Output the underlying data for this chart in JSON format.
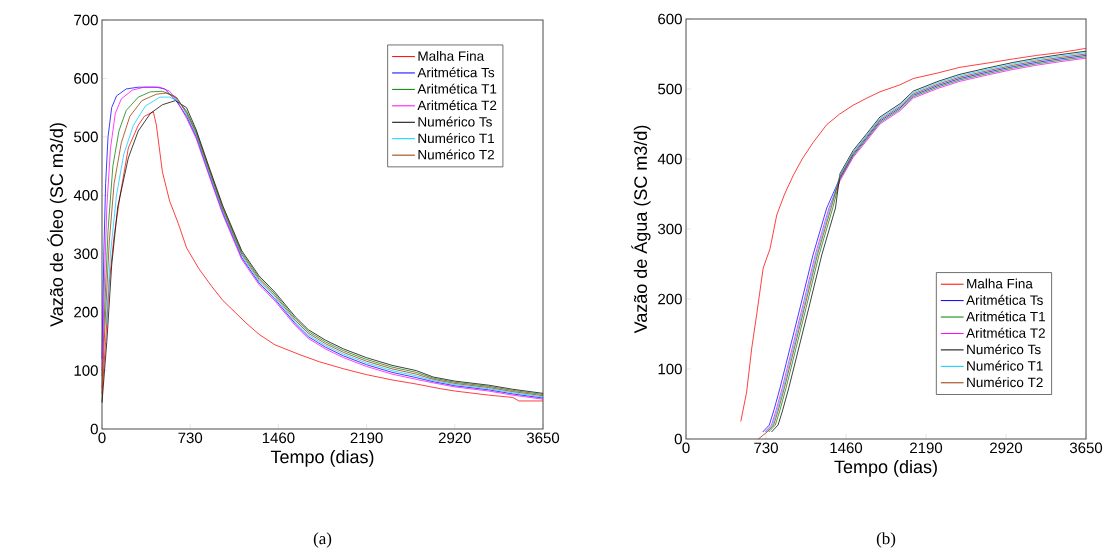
{
  "chart_data": [
    {
      "type": "line",
      "xlabel": "Tempo (dias)",
      "ylabel": "Vazão de Óleo (SC m3/d)",
      "xlim": [
        0,
        3650
      ],
      "ylim": [
        0,
        700
      ],
      "xticks": [
        0,
        730,
        1460,
        2190,
        2920,
        3650
      ],
      "yticks": [
        0,
        100,
        200,
        300,
        400,
        500,
        600,
        700
      ],
      "grid": false,
      "legend": "top right",
      "marker": "none",
      "annotations": [
        "(a)"
      ],
      "series": [
        {
          "name": "Malha Fina",
          "color": "#ff0000",
          "x": [
            0,
            30,
            60,
            100,
            150,
            218,
            300,
            350,
            425,
            450,
            500,
            560,
            631,
            700,
            800,
            908,
            1000,
            1100,
            1200,
            1300,
            1432,
            1639,
            1800,
            2000,
            2190,
            2400,
            2600,
            2800,
            2920,
            3200,
            3400,
            3450,
            3650
          ],
          "values": [
            60,
            150,
            250,
            330,
            400,
            481,
            520,
            535,
            543,
            520,
            440,
            390,
            352,
            310,
            275,
            244,
            220,
            200,
            180,
            162,
            144,
            127,
            115,
            103,
            93,
            84,
            77,
            69,
            65,
            58,
            54,
            48,
            48
          ]
        },
        {
          "name": "Aritmética Ts",
          "color": "#0000ff",
          "x": [
            0,
            15,
            30,
            50,
            80,
            120,
            200,
            300,
            450,
            520,
            620,
            700,
            780,
            880,
            1000,
            1157,
            1300,
            1432,
            1600,
            1707,
            1850,
            2000,
            2190,
            2400,
            2600,
            2741,
            2920,
            3200,
            3400,
            3650
          ],
          "values": [
            120,
            300,
            420,
            500,
            550,
            570,
            582,
            585,
            585,
            582,
            560,
            535,
            500,
            440,
            370,
            293,
            250,
            222,
            180,
            158,
            140,
            125,
            110,
            97,
            88,
            81,
            74,
            67,
            60,
            53
          ]
        },
        {
          "name": "Aritmética T1",
          "color": "#008000",
          "x": [
            0,
            25,
            50,
            90,
            140,
            200,
            300,
            400,
            500,
            600,
            700,
            780,
            880,
            1000,
            1157,
            1300,
            1432,
            1600,
            1707,
            1850,
            2000,
            2190,
            2400,
            2600,
            2741,
            2920,
            3200,
            3400,
            3650
          ],
          "values": [
            90,
            220,
            340,
            450,
            510,
            545,
            568,
            577,
            578,
            570,
            544,
            509,
            449,
            379,
            302,
            259,
            231,
            189,
            167,
            149,
            134,
            119,
            106,
            97,
            87,
            80,
            73,
            66,
            59
          ]
        },
        {
          "name": "Aritmética T2",
          "color": "#ff00ff",
          "x": [
            0,
            20,
            40,
            70,
            110,
            160,
            250,
            350,
            480,
            560,
            620,
            700,
            780,
            880,
            1000,
            1157,
            1300,
            1432,
            1600,
            1707,
            1850,
            2000,
            2190,
            2400,
            2600,
            2741,
            2920,
            3200,
            3400,
            3650
          ],
          "values": [
            100,
            250,
            380,
            480,
            540,
            565,
            580,
            585,
            585,
            578,
            562,
            532,
            497,
            437,
            367,
            290,
            247,
            219,
            177,
            155,
            137,
            122,
            107,
            94,
            85,
            79,
            72,
            65,
            58,
            51
          ]
        },
        {
          "name": "Numérico Ts",
          "color": "#000000",
          "x": [
            0,
            40,
            80,
            130,
            218,
            300,
            400,
            500,
            607,
            700,
            780,
            880,
            1000,
            1157,
            1300,
            1432,
            1600,
            1707,
            1850,
            2000,
            2190,
            2400,
            2600,
            2741,
            2920,
            3200,
            3400,
            3650
          ],
          "values": [
            45,
            150,
            280,
            380,
            464,
            510,
            540,
            555,
            562,
            550,
            512,
            452,
            382,
            305,
            262,
            234,
            192,
            170,
            152,
            137,
            122,
            109,
            100,
            89,
            82,
            75,
            68,
            61
          ]
        },
        {
          "name": "Numérico T1",
          "color": "#00ccff",
          "x": [
            35,
            70,
            120,
            180,
            260,
            360,
            480,
            560,
            640,
            700,
            780,
            880,
            1000,
            1157,
            1300,
            1432,
            1600,
            1707,
            1850,
            2000,
            2190,
            2400,
            2600,
            2741,
            2920,
            3200,
            3400,
            3650
          ],
          "values": [
            180,
            300,
            400,
            470,
            520,
            553,
            568,
            568,
            560,
            538,
            503,
            443,
            373,
            296,
            253,
            225,
            183,
            161,
            143,
            128,
            113,
            100,
            91,
            83,
            76,
            69,
            62,
            55
          ]
        },
        {
          "name": "Numérico T2",
          "color": "#993300",
          "x": [
            0,
            30,
            60,
            100,
            160,
            230,
            330,
            450,
            530,
            620,
            700,
            780,
            880,
            1000,
            1157,
            1300,
            1432,
            1600,
            1707,
            1850,
            2000,
            2190,
            2400,
            2600,
            2741,
            2920,
            3200,
            3400,
            3650
          ],
          "values": [
            70,
            200,
            320,
            420,
            490,
            535,
            562,
            573,
            575,
            567,
            541,
            506,
            null,
            376,
            299,
            256,
            228,
            186,
            164,
            146,
            131,
            116,
            103,
            94,
            85,
            78,
            71,
            64,
            57
          ]
        }
      ]
    },
    {
      "type": "line",
      "xlabel": "Tempo (dias)",
      "ylabel": "Vazão de Água (SC m3/d)",
      "xlim": [
        0,
        3650
      ],
      "ylim": [
        0,
        600
      ],
      "xticks": [
        0,
        730,
        1460,
        2190,
        2920,
        3650
      ],
      "yticks": [
        0,
        100,
        200,
        300,
        400,
        500,
        600
      ],
      "grid": false,
      "legend": "bottom right",
      "marker": "none",
      "annotations": [
        "(b)"
      ],
      "series": [
        {
          "name": "Malha Fina",
          "color": "#ff0000",
          "x": [
            500,
            553,
            600,
            644,
            704,
            767,
            828,
            900,
            980,
            1060,
            1162,
            1284,
            1400,
            1527,
            1650,
            1770,
            1953,
            2074,
            2300,
            2500,
            2750,
            2987,
            3200,
            3412,
            3650
          ],
          "values": [
            25,
            67,
            130,
            177,
            244,
            272,
            320,
            350,
            377,
            400,
            424,
            449,
            464,
            477,
            487,
            496,
            506,
            515,
            523,
            531,
            537,
            543,
            548,
            552,
            558
          ]
        },
        {
          "name": "Aritmética Ts",
          "color": "#0000ff",
          "x": [
            700,
            760,
            800,
            858,
            949,
            1040,
            1159,
            1284,
            1405,
            1524,
            1648,
            1770,
            1953,
            2074,
            2300,
            2500,
            2750,
            2987,
            3200,
            3412,
            3650
          ],
          "values": [
            10,
            20,
            40,
            73,
            130,
            187,
            263,
            330,
            373,
            406,
            430,
            454,
            473,
            491,
            505,
            515,
            524,
            532,
            538,
            543,
            548
          ]
        },
        {
          "name": "Aritmética T1",
          "color": "#008000",
          "x": [
            755,
            815,
            855,
            913,
            1004,
            1095,
            1214,
            1339,
            1405,
            1524,
            1648,
            1770,
            1953,
            2074,
            2300,
            2500,
            2750,
            2987,
            3200,
            3412,
            3650
          ],
          "values": [
            10,
            20,
            40,
            73,
            130,
            187,
            263,
            330,
            371,
            404,
            428,
            452,
            471,
            489,
            503,
            513,
            522,
            530,
            536,
            541,
            546
          ]
        },
        {
          "name": "Aritmética T2",
          "color": "#ff00ff",
          "x": [
            720,
            780,
            820,
            878,
            969,
            1060,
            1179,
            1304,
            1405,
            1524,
            1648,
            1770,
            1953,
            2074,
            2300,
            2500,
            2750,
            2987,
            3200,
            3412,
            3650
          ],
          "values": [
            10,
            20,
            40,
            73,
            130,
            187,
            263,
            330,
            369,
            402,
            426,
            450,
            469,
            487,
            501,
            511,
            520,
            528,
            534,
            539,
            544
          ]
        },
        {
          "name": "Numérico Ts",
          "color": "#000000",
          "x": [
            780,
            840,
            880,
            938,
            1029,
            1120,
            1239,
            1364,
            1405,
            1524,
            1648,
            1770,
            1953,
            2074,
            2300,
            2500,
            2750,
            2987,
            3200,
            3412,
            3650
          ],
          "values": [
            10,
            20,
            40,
            73,
            130,
            187,
            263,
            330,
            379,
            412,
            436,
            460,
            479,
            497,
            511,
            521,
            530,
            538,
            544,
            549,
            554
          ]
        },
        {
          "name": "Numérico T1",
          "color": "#00ccff",
          "x": [
            730,
            790,
            830,
            888,
            979,
            1070,
            1189,
            1314,
            1405,
            1524,
            1648,
            1770,
            1953,
            2074,
            2300,
            2500,
            2750,
            2987,
            3200,
            3412,
            3650
          ],
          "values": [
            10,
            20,
            40,
            73,
            130,
            187,
            263,
            330,
            377,
            410,
            434,
            458,
            477,
            495,
            509,
            519,
            528,
            536,
            542,
            547,
            552
          ]
        },
        {
          "name": "Numérico T2",
          "color": "#993300",
          "x": [
            660,
            740,
            800,
            840,
            898,
            989,
            1080,
            1199,
            1324,
            1405,
            1524,
            1648,
            1770,
            1953,
            2074,
            2300,
            2500,
            2750,
            2987,
            3200,
            3412,
            3650
          ],
          "values": [
            0,
            10,
            20,
            40,
            73,
            130,
            187,
            263,
            330,
            375,
            408,
            432,
            456,
            475,
            493,
            507,
            517,
            526,
            534,
            540,
            545,
            550
          ]
        }
      ]
    }
  ]
}
